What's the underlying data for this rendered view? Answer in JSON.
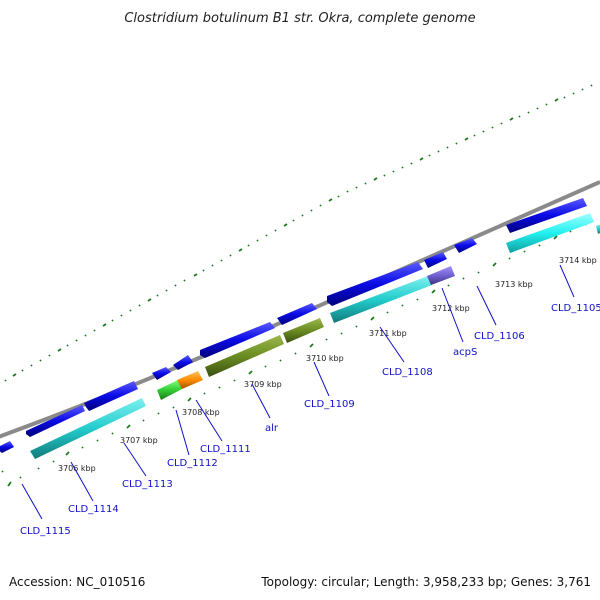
{
  "title": "Clostridium botulinum B1 str. Okra, complete genome",
  "footer": {
    "accession": "Accession: NC_010516",
    "summary": "Topology: circular; Length: 3,958,233 bp; Genes: 3,761"
  },
  "kbp_labels": [
    "3706 kbp",
    "3707 kbp",
    "3708 kbp",
    "3709 kbp",
    "3710 kbp",
    "3711 kbp",
    "3712 kbp",
    "3713 kbp",
    "3714 kbp"
  ],
  "gene_labels": [
    "CLD_1115",
    "CLD_1114",
    "CLD_1113",
    "CLD_1112",
    "CLD_1111",
    "alr",
    "CLD_1109",
    "CLD_1108",
    "acpS",
    "CLD_1106",
    "CLD_1105"
  ],
  "colors": {
    "backbone": "#8a8a8a",
    "tick": "#1a7a1a",
    "gene_blue": "#0a0ae6",
    "cds_cyan": "#22cccc",
    "cds_bright_cyan": "#22f0f0",
    "olive": "#6b8c22",
    "green": "#33cc33",
    "orange": "#ff8c00",
    "purple": "#7060d0",
    "label": "#1010c8"
  }
}
